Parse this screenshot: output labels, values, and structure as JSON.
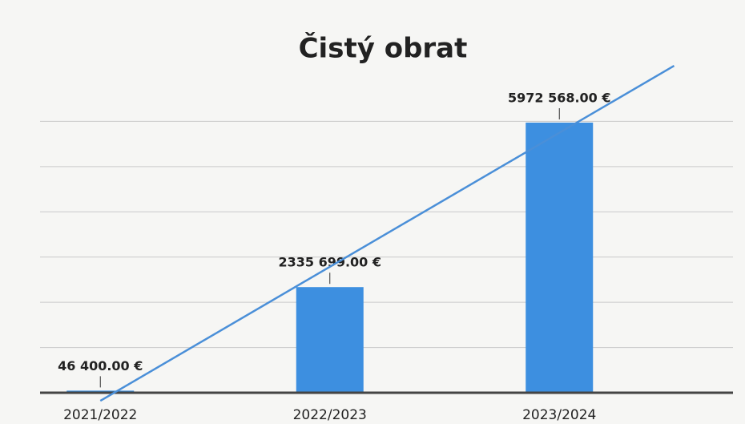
{
  "chart_data": {
    "type": "bar",
    "title": "Čistý obrat",
    "categories": [
      "2021/2022",
      "2022/2023",
      "2023/2024"
    ],
    "values": [
      46400,
      2335699,
      5972568
    ],
    "value_labels": [
      "46 400.00 €",
      "2335 699.00 €",
      "5972 568.00 €"
    ],
    "color": "#3d8fe0",
    "trendline": true,
    "trendline_color": "#4a8fd8",
    "ylim": [
      0,
      7000000
    ],
    "yticks": [
      0,
      1000000,
      2000000,
      3000000,
      4000000,
      5000000,
      6000000
    ],
    "grid": true
  }
}
